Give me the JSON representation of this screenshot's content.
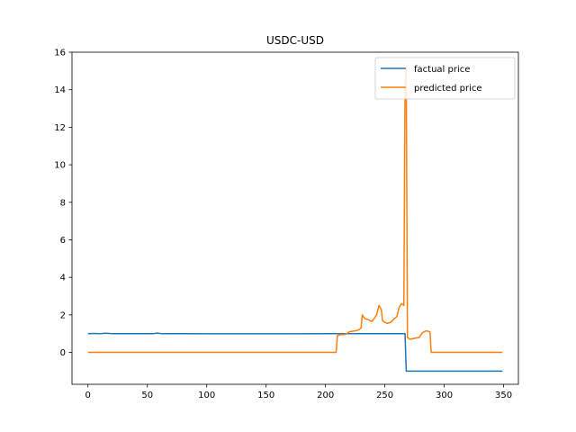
{
  "chart_data": {
    "type": "line",
    "title": "USDC-USD",
    "xlabel": "",
    "ylabel": "",
    "xlim": [
      -13.45,
      362.45
    ],
    "ylim": [
      -1.7,
      16
    ],
    "xticks": [
      0,
      50,
      100,
      150,
      200,
      250,
      300,
      350
    ],
    "yticks": [
      0,
      2,
      4,
      6,
      8,
      10,
      12,
      14,
      16
    ],
    "grid": false,
    "legend_position": "top-right",
    "series": [
      {
        "name": "factual price",
        "color": "#1f77b4",
        "points": [
          [
            0,
            1.0
          ],
          [
            5,
            1.01
          ],
          [
            10,
            1.0
          ],
          [
            15,
            1.02
          ],
          [
            20,
            1.0
          ],
          [
            25,
            1.0
          ],
          [
            50,
            1.0
          ],
          [
            55,
            1.0
          ],
          [
            58,
            1.03
          ],
          [
            62,
            1.0
          ],
          [
            80,
            1.0
          ],
          [
            150,
            0.99
          ],
          [
            200,
            1.0
          ],
          [
            267,
            1.0
          ],
          [
            268,
            -1.0
          ],
          [
            349,
            -1.0
          ]
        ]
      },
      {
        "name": "predicted price",
        "color": "#ff7f0e",
        "points": [
          [
            0,
            0.0
          ],
          [
            209,
            0.0
          ],
          [
            210,
            0.9
          ],
          [
            213,
            0.95
          ],
          [
            216,
            0.95
          ],
          [
            218,
            1.0
          ],
          [
            220,
            1.1
          ],
          [
            225,
            1.15
          ],
          [
            228,
            1.2
          ],
          [
            230,
            1.3
          ],
          [
            231,
            2.0
          ],
          [
            233,
            1.8
          ],
          [
            236,
            1.75
          ],
          [
            239,
            1.65
          ],
          [
            241,
            1.8
          ],
          [
            243,
            2.0
          ],
          [
            245,
            2.5
          ],
          [
            247,
            2.3
          ],
          [
            248,
            1.7
          ],
          [
            250,
            1.6
          ],
          [
            252,
            1.55
          ],
          [
            255,
            1.6
          ],
          [
            258,
            1.8
          ],
          [
            260,
            1.9
          ],
          [
            262,
            2.4
          ],
          [
            264,
            2.6
          ],
          [
            266,
            2.5
          ],
          [
            267,
            14.0
          ],
          [
            268,
            15.2
          ],
          [
            269,
            0.8
          ],
          [
            271,
            0.7
          ],
          [
            275,
            0.75
          ],
          [
            279,
            0.8
          ],
          [
            281,
            1.0
          ],
          [
            283,
            1.1
          ],
          [
            285,
            1.15
          ],
          [
            288,
            1.1
          ],
          [
            289,
            0.0
          ],
          [
            349,
            0.0
          ]
        ]
      }
    ]
  }
}
